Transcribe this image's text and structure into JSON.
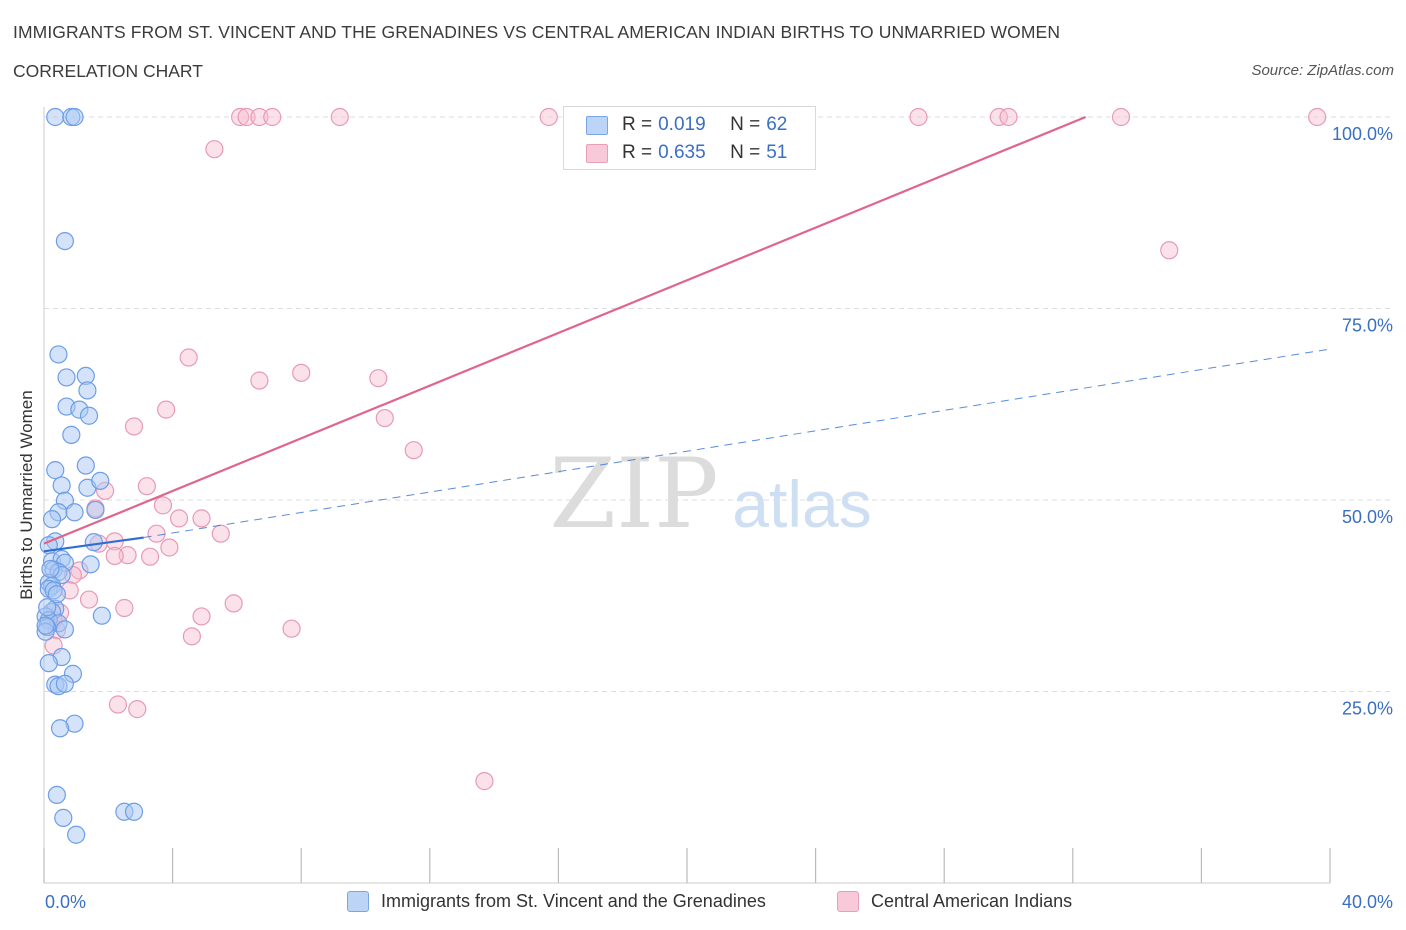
{
  "header": {
    "title": "IMMIGRANTS FROM ST. VINCENT AND THE GRENADINES VS CENTRAL AMERICAN INDIAN BIRTHS TO UNMARRIED WOMEN",
    "subtitle": "CORRELATION CHART",
    "source": "Source: ZipAtlas.com"
  },
  "legend": {
    "rows": [
      {
        "r_key": "R = ",
        "r_value": "0.019",
        "n_key": "N = ",
        "n_value": "62"
      },
      {
        "r_key": "R = ",
        "r_value": "0.635",
        "n_key": "N = ",
        "n_value": "51"
      }
    ]
  },
  "watermark": {
    "zip": "ZIP",
    "atlas": "atlas"
  },
  "colors": {
    "blue_fill": "#a9c8f3",
    "blue_stroke": "#6d9ee6",
    "blue_line": "#2f6fd1",
    "pink_fill": "#f6bdd0",
    "pink_stroke": "#e89ab4",
    "pink_line": "#e0648c",
    "tick_label": "#3a6fc4",
    "grid": "#dddddd"
  },
  "chart_data": {
    "type": "scatter",
    "title": "IMMIGRANTS FROM ST. VINCENT AND THE GRENADINES VS CENTRAL AMERICAN INDIAN BIRTHS TO UNMARRIED WOMEN",
    "xlabel": "",
    "ylabel": "Births to Unmarried Women",
    "xlim": [
      0,
      40
    ],
    "ylim": [
      0,
      100
    ],
    "x_tick_labels": [
      "0.0%",
      "40.0%"
    ],
    "y_ticks": [
      25,
      50,
      75,
      100
    ],
    "y_tick_labels": [
      "25.0%",
      "50.0%",
      "75.0%",
      "100.0%"
    ],
    "grid": true,
    "legend_position": "top-center",
    "series": [
      {
        "name": "Immigrants from St. Vincent and the Grenadines",
        "color": "#a9c8f3",
        "trend": {
          "x": [
            0.0,
            3.1
          ],
          "y": [
            43.3,
            45.1
          ],
          "style": "solid"
        },
        "trend_extension": {
          "x": [
            3.1,
            40.0
          ],
          "y": [
            45.1,
            69.7
          ],
          "style": "dashed"
        },
        "points": [
          {
            "x": 0.35,
            "y": 100
          },
          {
            "x": 0.85,
            "y": 100
          },
          {
            "x": 0.95,
            "y": 100
          },
          {
            "x": 0.65,
            "y": 83.8
          },
          {
            "x": 0.45,
            "y": 69.0
          },
          {
            "x": 1.3,
            "y": 66.2
          },
          {
            "x": 0.7,
            "y": 66.0
          },
          {
            "x": 1.35,
            "y": 64.3
          },
          {
            "x": 0.7,
            "y": 62.2
          },
          {
            "x": 1.1,
            "y": 61.8
          },
          {
            "x": 1.4,
            "y": 61.0
          },
          {
            "x": 0.85,
            "y": 58.5
          },
          {
            "x": 0.35,
            "y": 53.9
          },
          {
            "x": 1.3,
            "y": 54.5
          },
          {
            "x": 0.55,
            "y": 51.9
          },
          {
            "x": 1.35,
            "y": 51.6
          },
          {
            "x": 1.75,
            "y": 52.5
          },
          {
            "x": 0.65,
            "y": 49.9
          },
          {
            "x": 0.45,
            "y": 48.4
          },
          {
            "x": 0.95,
            "y": 48.4
          },
          {
            "x": 0.25,
            "y": 47.5
          },
          {
            "x": 1.6,
            "y": 48.7
          },
          {
            "x": 0.35,
            "y": 44.6
          },
          {
            "x": 1.55,
            "y": 44.5
          },
          {
            "x": 0.15,
            "y": 44.1
          },
          {
            "x": 0.25,
            "y": 42.0
          },
          {
            "x": 0.55,
            "y": 42.3
          },
          {
            "x": 0.65,
            "y": 41.8
          },
          {
            "x": 1.45,
            "y": 41.6
          },
          {
            "x": 0.3,
            "y": 40.9
          },
          {
            "x": 0.45,
            "y": 40.6
          },
          {
            "x": 0.55,
            "y": 40.2
          },
          {
            "x": 0.15,
            "y": 39.2
          },
          {
            "x": 0.25,
            "y": 38.8
          },
          {
            "x": 0.15,
            "y": 38.4
          },
          {
            "x": 0.3,
            "y": 38.2
          },
          {
            "x": 0.35,
            "y": 35.8
          },
          {
            "x": 0.25,
            "y": 35.4
          },
          {
            "x": 0.05,
            "y": 34.8
          },
          {
            "x": 0.15,
            "y": 34.3
          },
          {
            "x": 0.45,
            "y": 33.9
          },
          {
            "x": 1.8,
            "y": 34.9
          },
          {
            "x": 0.1,
            "y": 33.4
          },
          {
            "x": 0.65,
            "y": 33.1
          },
          {
            "x": 0.05,
            "y": 32.8
          },
          {
            "x": 0.55,
            "y": 29.5
          },
          {
            "x": 0.15,
            "y": 28.7
          },
          {
            "x": 0.9,
            "y": 27.3
          },
          {
            "x": 0.35,
            "y": 25.9
          },
          {
            "x": 0.45,
            "y": 25.7
          },
          {
            "x": 0.65,
            "y": 26.0
          },
          {
            "x": 0.95,
            "y": 20.8
          },
          {
            "x": 0.5,
            "y": 20.2
          },
          {
            "x": 0.4,
            "y": 11.5
          },
          {
            "x": 0.6,
            "y": 8.5
          },
          {
            "x": 1.0,
            "y": 6.3
          },
          {
            "x": 2.5,
            "y": 9.3
          },
          {
            "x": 2.8,
            "y": 9.3
          },
          {
            "x": 0.1,
            "y": 36.0
          },
          {
            "x": 0.2,
            "y": 41.0
          },
          {
            "x": 0.05,
            "y": 33.6
          },
          {
            "x": 0.4,
            "y": 37.7
          }
        ]
      },
      {
        "name": "Central American Indians",
        "color": "#f6bdd0",
        "trend": {
          "x": [
            0.0,
            32.4
          ],
          "y": [
            44.3,
            100.0
          ],
          "style": "solid"
        },
        "points": [
          {
            "x": 6.1,
            "y": 100
          },
          {
            "x": 6.3,
            "y": 100
          },
          {
            "x": 6.7,
            "y": 100
          },
          {
            "x": 7.1,
            "y": 100
          },
          {
            "x": 9.2,
            "y": 100
          },
          {
            "x": 15.7,
            "y": 100
          },
          {
            "x": 27.2,
            "y": 100
          },
          {
            "x": 29.7,
            "y": 100
          },
          {
            "x": 30.0,
            "y": 100
          },
          {
            "x": 33.5,
            "y": 100
          },
          {
            "x": 39.6,
            "y": 100
          },
          {
            "x": 5.3,
            "y": 95.8
          },
          {
            "x": 35.0,
            "y": 82.6
          },
          {
            "x": 4.5,
            "y": 68.6
          },
          {
            "x": 8.0,
            "y": 66.6
          },
          {
            "x": 6.7,
            "y": 65.6
          },
          {
            "x": 10.4,
            "y": 65.9
          },
          {
            "x": 3.8,
            "y": 61.8
          },
          {
            "x": 10.6,
            "y": 60.7
          },
          {
            "x": 2.8,
            "y": 59.6
          },
          {
            "x": 11.5,
            "y": 56.5
          },
          {
            "x": 3.2,
            "y": 51.8
          },
          {
            "x": 1.9,
            "y": 51.2
          },
          {
            "x": 3.7,
            "y": 49.3
          },
          {
            "x": 1.6,
            "y": 48.9
          },
          {
            "x": 4.2,
            "y": 47.6
          },
          {
            "x": 4.9,
            "y": 47.6
          },
          {
            "x": 3.5,
            "y": 45.6
          },
          {
            "x": 5.5,
            "y": 45.6
          },
          {
            "x": 2.2,
            "y": 44.6
          },
          {
            "x": 1.7,
            "y": 44.3
          },
          {
            "x": 3.9,
            "y": 43.8
          },
          {
            "x": 2.6,
            "y": 42.8
          },
          {
            "x": 3.3,
            "y": 42.6
          },
          {
            "x": 2.2,
            "y": 42.7
          },
          {
            "x": 1.1,
            "y": 40.8
          },
          {
            "x": 0.9,
            "y": 40.2
          },
          {
            "x": 0.8,
            "y": 38.2
          },
          {
            "x": 1.4,
            "y": 37.0
          },
          {
            "x": 5.9,
            "y": 36.5
          },
          {
            "x": 2.5,
            "y": 35.9
          },
          {
            "x": 0.5,
            "y": 35.3
          },
          {
            "x": 4.9,
            "y": 34.8
          },
          {
            "x": 0.3,
            "y": 34.3
          },
          {
            "x": 7.7,
            "y": 33.2
          },
          {
            "x": 0.4,
            "y": 33.0
          },
          {
            "x": 4.6,
            "y": 32.2
          },
          {
            "x": 0.3,
            "y": 31.0
          },
          {
            "x": 2.3,
            "y": 23.3
          },
          {
            "x": 2.9,
            "y": 22.7
          },
          {
            "x": 13.7,
            "y": 13.3
          }
        ]
      }
    ]
  },
  "bottom_legend": {
    "items": [
      {
        "label": "Immigrants from St. Vincent and the Grenadines"
      },
      {
        "label": "Central American Indians"
      }
    ]
  }
}
